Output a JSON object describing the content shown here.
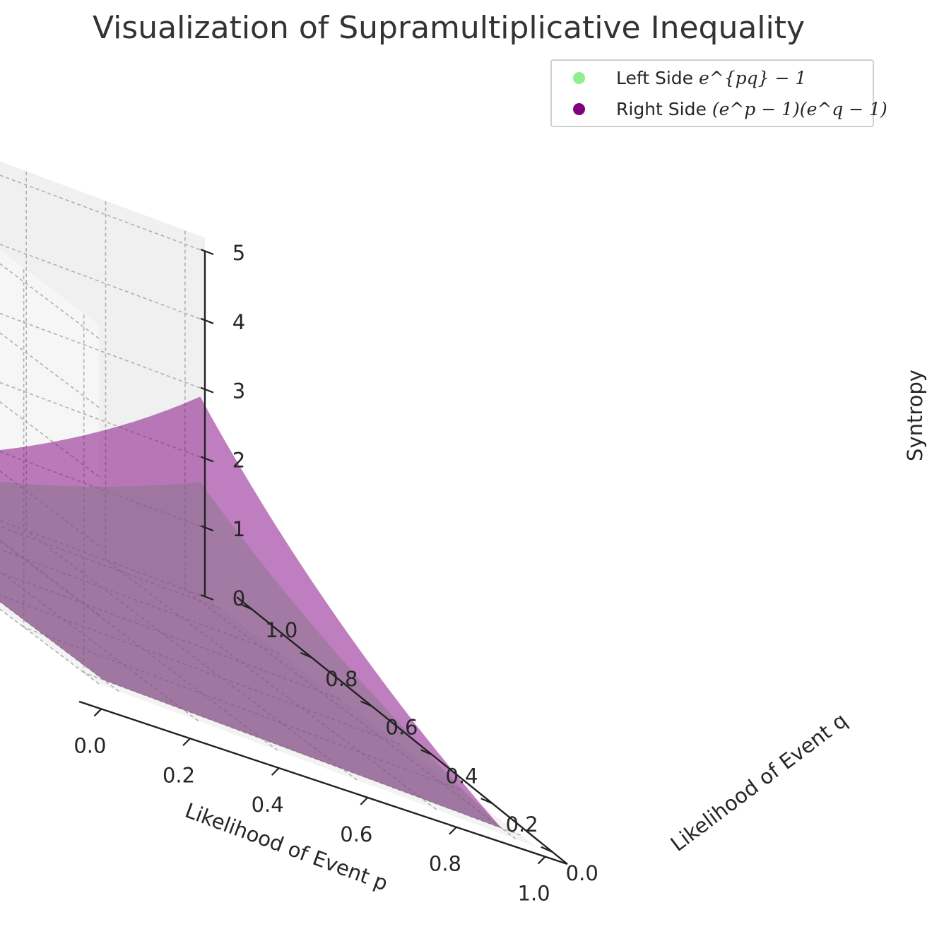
{
  "title": "Visualization of Supramultiplicative Inequality",
  "legend": {
    "left": {
      "label": "Left Side",
      "math": "e^{pq} − 1",
      "color": "#90ee90"
    },
    "right": {
      "label": "Right Side",
      "math": "(e^p − 1)(e^q − 1)",
      "color": "#800080"
    }
  },
  "chart_data": {
    "type": "surface3d",
    "title": "Visualization of Supramultiplicative Inequality",
    "xlabel": "Likelihood of Event p",
    "ylabel": "Likelihood of Event q",
    "zlabel": "Syntropy",
    "xlim": [
      0,
      1
    ],
    "ylim": [
      0,
      1
    ],
    "zlim": [
      0,
      5
    ],
    "xticks": [
      "0.0",
      "0.2",
      "0.4",
      "0.6",
      "0.8",
      "1.0"
    ],
    "yticks": [
      "0.0",
      "0.2",
      "0.4",
      "0.6",
      "0.8",
      "1.0"
    ],
    "zticks": [
      "0",
      "1",
      "2",
      "3",
      "4",
      "5"
    ],
    "grid": true,
    "legend_position": "top-right",
    "series": [
      {
        "name": "Left Side e^{pq} − 1",
        "function": "exp(p*q) - 1",
        "color": "#90ee90",
        "alpha": 0.5,
        "corners": {
          "p0q0": 0,
          "p1q0": 0,
          "p0q1": 0,
          "p1q1": 1.718
        }
      },
      {
        "name": "Right Side (e^p − 1)(e^q − 1)",
        "function": "(exp(p)-1)*(exp(q)-1)",
        "color": "#800080",
        "alpha": 0.5,
        "corners": {
          "p0q0": 0,
          "p1q0": 0,
          "p0q1": 0,
          "p1q1": 2.952
        }
      }
    ]
  }
}
